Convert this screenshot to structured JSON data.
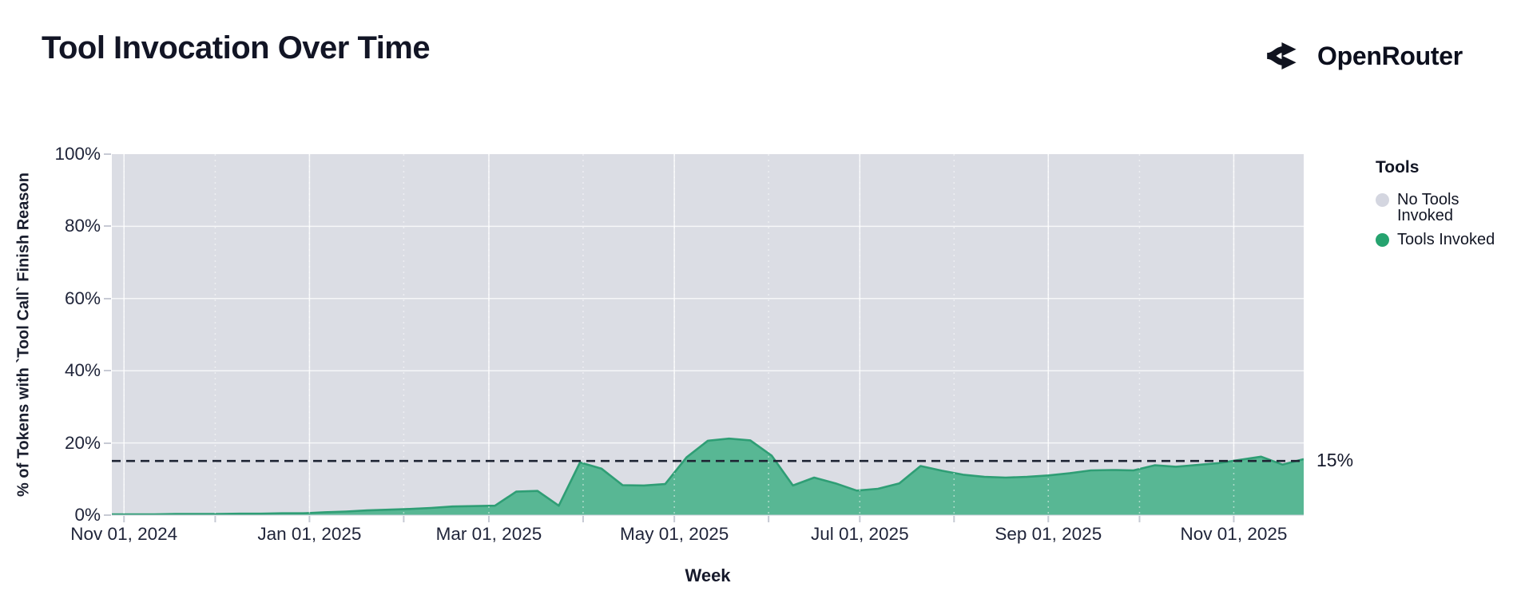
{
  "header": {
    "title": "Tool Invocation Over Time",
    "brand": "OpenRouter"
  },
  "legend": {
    "title": "Tools",
    "items": [
      {
        "label": "No Tools Invoked",
        "color": "#d4d6e0"
      },
      {
        "label": "Tools Invoked",
        "color": "#26a36f"
      }
    ]
  },
  "chart_data": {
    "type": "area",
    "stacking": "percent-share",
    "title": "Tool Invocation Over Time",
    "xlabel": "Week",
    "ylabel": "% of Tokens with `Tool Call` Finish Reason",
    "ylim": [
      0,
      100
    ],
    "grid": true,
    "legend_position": "right",
    "y_ticks": [
      {
        "value": 0,
        "label": "0%"
      },
      {
        "value": 20,
        "label": "20%"
      },
      {
        "value": 40,
        "label": "40%"
      },
      {
        "value": 60,
        "label": "60%"
      },
      {
        "value": 80,
        "label": "80%"
      },
      {
        "value": 100,
        "label": "100%"
      }
    ],
    "y_gridlines": [
      20,
      40,
      60,
      80
    ],
    "x_domain": [
      "2024-10-28",
      "2025-11-24"
    ],
    "x_ticks": [
      {
        "date": "2024-11-01",
        "label": "Nov 01, 2024"
      },
      {
        "date": "2025-01-01",
        "label": "Jan 01, 2025"
      },
      {
        "date": "2025-03-01",
        "label": "Mar 01, 2025"
      },
      {
        "date": "2025-05-01",
        "label": "May 01, 2025"
      },
      {
        "date": "2025-07-01",
        "label": "Jul 01, 2025"
      },
      {
        "date": "2025-09-01",
        "label": "Sep 01, 2025"
      },
      {
        "date": "2025-11-01",
        "label": "Nov 01, 2025"
      }
    ],
    "x_month_gridlines": [
      "2024-11-01",
      "2024-12-01",
      "2025-01-01",
      "2025-02-01",
      "2025-03-01",
      "2025-04-01",
      "2025-05-01",
      "2025-06-01",
      "2025-07-01",
      "2025-08-01",
      "2025-09-01",
      "2025-10-01",
      "2025-11-01"
    ],
    "x": [
      "2024-10-28",
      "2024-11-04",
      "2024-11-11",
      "2024-11-18",
      "2024-11-25",
      "2024-12-02",
      "2024-12-09",
      "2024-12-16",
      "2024-12-23",
      "2024-12-30",
      "2025-01-06",
      "2025-01-13",
      "2025-01-20",
      "2025-01-27",
      "2025-02-03",
      "2025-02-10",
      "2025-02-17",
      "2025-02-24",
      "2025-03-03",
      "2025-03-10",
      "2025-03-17",
      "2025-03-24",
      "2025-03-31",
      "2025-04-07",
      "2025-04-14",
      "2025-04-21",
      "2025-04-28",
      "2025-05-05",
      "2025-05-12",
      "2025-05-19",
      "2025-05-26",
      "2025-06-02",
      "2025-06-09",
      "2025-06-16",
      "2025-06-23",
      "2025-06-30",
      "2025-07-07",
      "2025-07-14",
      "2025-07-21",
      "2025-07-28",
      "2025-08-04",
      "2025-08-11",
      "2025-08-18",
      "2025-08-25",
      "2025-09-01",
      "2025-09-08",
      "2025-09-15",
      "2025-09-22",
      "2025-09-29",
      "2025-10-06",
      "2025-10-13",
      "2025-10-20",
      "2025-10-27",
      "2025-11-03",
      "2025-11-10",
      "2025-11-17",
      "2025-11-24"
    ],
    "series": [
      {
        "name": "Tools Invoked",
        "color": "#26a36f",
        "area_fill": "#58b794",
        "line_color": "#2f9e75",
        "values": [
          0.2,
          0.2,
          0.2,
          0.3,
          0.3,
          0.3,
          0.4,
          0.4,
          0.5,
          0.5,
          0.8,
          1.0,
          1.3,
          1.5,
          1.7,
          2.0,
          2.4,
          2.5,
          2.6,
          6.5,
          6.7,
          2.6,
          14.6,
          12.9,
          8.3,
          8.2,
          8.6,
          16.0,
          20.6,
          21.2,
          20.7,
          16.5,
          8.2,
          10.4,
          8.8,
          6.8,
          7.3,
          8.8,
          13.6,
          12.3,
          11.2,
          10.6,
          10.4,
          10.6,
          11.0,
          11.6,
          12.4,
          12.5,
          12.4,
          13.8,
          13.4,
          13.9,
          14.4,
          15.3,
          16.2,
          14.0,
          15.5
        ]
      },
      {
        "name": "No Tools Invoked",
        "color": "#dbdde4",
        "fills_remainder_to": 100
      }
    ],
    "annotation": {
      "value": 15,
      "label": "15%",
      "style": "dashed"
    }
  }
}
